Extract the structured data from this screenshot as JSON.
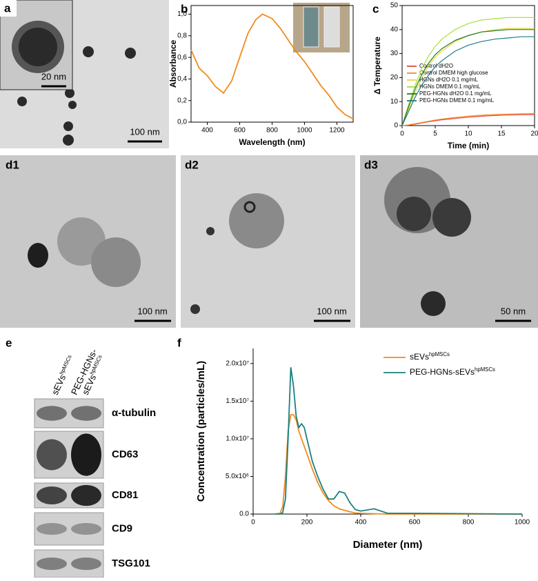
{
  "images": {
    "a": {
      "label": "a",
      "inset_scale": "20 nm",
      "scale": "100 nm"
    },
    "d1": {
      "label": "d1",
      "scale": "100 nm"
    },
    "d2": {
      "label": "d2",
      "scale": "100 nm"
    },
    "d3": {
      "label": "d3",
      "scale": "50 nm"
    }
  },
  "blot": {
    "label": "e",
    "lanes": [
      {
        "text": "sEVs",
        "sup": "hpMSCs"
      },
      {
        "top": "PEG-HGNs-",
        "text": "sEVs",
        "sup": "hpMSCs"
      }
    ],
    "bands": [
      "α-tubulin",
      "CD63",
      "CD81",
      "CD9",
      "TSG101"
    ]
  },
  "chart_data": [
    {
      "type": "line",
      "label": "b",
      "x_label": "Wavelength (nm)",
      "y_label": "Absorbance",
      "x": [
        300,
        350,
        400,
        450,
        500,
        550,
        600,
        650,
        700,
        740,
        800,
        850,
        900,
        950,
        1000,
        1050,
        1100,
        1150,
        1200,
        1250,
        1300
      ],
      "series": [
        {
          "color": "#f28a1a",
          "values": [
            0.67,
            0.5,
            0.43,
            0.33,
            0.27,
            0.38,
            0.6,
            0.82,
            0.95,
            1.0,
            0.96,
            0.87,
            0.76,
            0.65,
            0.56,
            0.45,
            0.34,
            0.25,
            0.14,
            0.07,
            0.03
          ]
        }
      ],
      "xlim": [
        300,
        1300
      ],
      "ylim": [
        0,
        1.08
      ],
      "xticks": [
        400,
        600,
        800,
        1000,
        1200
      ],
      "yticks": [
        {
          "value": 0,
          "label": "0,0"
        },
        {
          "value": 0.2,
          "label": "0,2"
        },
        {
          "value": 0.4,
          "label": "0,4"
        },
        {
          "value": 0.6,
          "label": "0,6"
        },
        {
          "value": 0.8,
          "label": "0,8"
        },
        {
          "value": 1.0,
          "label": "1,0"
        }
      ]
    },
    {
      "type": "line",
      "label": "c",
      "x_label": "Time (min)",
      "y_label": "Δ Temperature",
      "x": [
        0,
        1,
        2,
        3,
        4,
        5,
        6,
        8,
        10,
        12,
        14,
        16,
        18,
        20
      ],
      "series": [
        {
          "name": "Control dH2O",
          "color": "#e8463a",
          "values": [
            0,
            0.2,
            0.6,
            1.1,
            1.6,
            2,
            2.4,
            3,
            3.5,
            3.9,
            4.2,
            4.4,
            4.5,
            4.6
          ]
        },
        {
          "name": "Control DMEM high glucose",
          "color": "#f08c28",
          "values": [
            0,
            0.3,
            0.8,
            1.3,
            1.8,
            2.3,
            2.7,
            3.4,
            3.9,
            4.3,
            4.6,
            4.8,
            4.9,
            5.0
          ]
        },
        {
          "name": "HGNs dH2O 0.1 mg/mL",
          "color": "#e8d840",
          "values": [
            0,
            7,
            14,
            20,
            25,
            28.5,
            31,
            35,
            37.5,
            39,
            40,
            40.5,
            40.5,
            40.5
          ]
        },
        {
          "name": "HGNs DMEM 0.1 mg/mL",
          "color": "#a8e03c",
          "values": [
            0,
            9,
            17,
            24,
            29,
            33,
            36,
            40,
            42.5,
            44,
            44.5,
            45,
            45,
            45
          ]
        },
        {
          "name": "PEG-HGNs dH2O 0.1 mg/mL",
          "color": "#1e7a1e",
          "values": [
            0,
            8,
            15.5,
            21.5,
            26,
            29.5,
            32,
            35.5,
            37.5,
            39,
            39.5,
            40,
            40,
            40
          ]
        },
        {
          "name": "PEG-HGNs DMEM 0.1 mg/mL",
          "color": "#1f7a8c",
          "values": [
            0,
            6,
            12,
            17,
            21,
            24.5,
            27,
            31,
            33.5,
            35,
            36,
            36.5,
            37,
            37
          ]
        }
      ],
      "xlim": [
        0,
        20
      ],
      "ylim": [
        0,
        50
      ],
      "xticks": [
        0,
        5,
        10,
        15,
        20
      ],
      "yticks": [
        0,
        10,
        20,
        30,
        40,
        50
      ],
      "legend": "upper left"
    },
    {
      "type": "line",
      "label": "f",
      "x_label": "Diameter (nm)",
      "y_label": "Concentration (particles/mL)",
      "x": [
        80,
        100,
        110,
        120,
        130,
        140,
        150,
        160,
        170,
        180,
        190,
        200,
        220,
        240,
        260,
        280,
        300,
        320,
        340,
        360,
        380,
        400,
        450,
        500,
        600,
        1000
      ],
      "series": [
        {
          "name": "sEVs",
          "name_sup": "hpMSCs",
          "color": "#f28a1a",
          "values": [
            0,
            100000,
            1000000,
            5000000,
            11000000,
            13200000,
            13200000,
            12500000,
            11000000,
            10000000,
            9000000,
            8000000,
            6000000,
            4200000,
            2800000,
            1800000,
            1100000,
            700000,
            500000,
            300000,
            150000,
            100000,
            50000,
            0,
            0,
            0
          ]
        },
        {
          "name": "PEG-HGNs-sEVs",
          "name_sup": "hpMSCs",
          "color": "#1a7f7f",
          "values": [
            0,
            0,
            200000,
            2000000,
            10000000,
            19500000,
            17000000,
            13000000,
            11500000,
            12000000,
            11500000,
            10000000,
            7000000,
            5000000,
            3300000,
            2000000,
            2000000,
            3000000,
            2800000,
            1500000,
            600000,
            400000,
            700000,
            100000,
            100000,
            0
          ]
        }
      ],
      "xlim": [
        0,
        1000
      ],
      "ylim": [
        0,
        22000000
      ],
      "xticks": [
        0,
        200,
        400,
        600,
        800,
        1000
      ],
      "yticks": [
        {
          "value": 0,
          "label": "0.0"
        },
        {
          "value": 5000000,
          "label": "5.0x10⁶"
        },
        {
          "value": 10000000,
          "label": "1.0x10⁷"
        },
        {
          "value": 15000000,
          "label": "1.5x10⁷"
        },
        {
          "value": 20000000,
          "label": "2.0x10⁷"
        }
      ],
      "legend": "upper right"
    }
  ]
}
